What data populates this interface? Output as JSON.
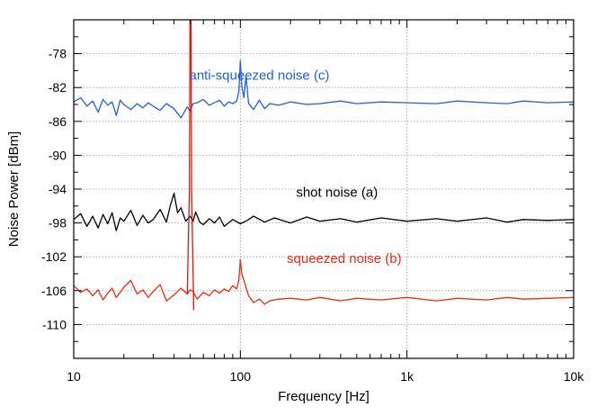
{
  "chart_data": {
    "type": "line",
    "title": "",
    "xlabel": "Frequency [Hz]",
    "ylabel": "Noise Power [dBm]",
    "xscale": "log",
    "xlim": [
      10,
      10000
    ],
    "ylim": [
      -114,
      -74
    ],
    "grid": true,
    "x_ticks": [
      {
        "value": 10,
        "label": "10"
      },
      {
        "value": 100,
        "label": "100"
      },
      {
        "value": 1000,
        "label": "1k"
      },
      {
        "value": 10000,
        "label": "10k"
      }
    ],
    "y_ticks": [
      {
        "value": -78,
        "label": "-78"
      },
      {
        "value": -82,
        "label": "-82"
      },
      {
        "value": -86,
        "label": "-86"
      },
      {
        "value": -90,
        "label": "-90"
      },
      {
        "value": -94,
        "label": "-94"
      },
      {
        "value": -98,
        "label": "-98"
      },
      {
        "value": -102,
        "label": "-102"
      },
      {
        "value": -106,
        "label": "-106"
      },
      {
        "value": -110,
        "label": "-110"
      }
    ],
    "series": [
      {
        "name": "anti-squeezed noise (c)",
        "color": "#1f5fe0",
        "x": [
          10,
          11,
          12,
          13,
          14,
          15,
          16,
          17,
          18,
          19,
          20,
          22,
          24,
          26,
          28,
          30,
          33,
          36,
          40,
          44,
          48,
          50,
          52,
          55,
          60,
          65,
          70,
          75,
          80,
          85,
          90,
          95,
          98,
          100,
          102,
          105,
          108,
          112,
          120,
          130,
          140,
          150,
          170,
          200,
          250,
          300,
          400,
          500,
          700,
          1000,
          1500,
          2000,
          3000,
          4000,
          5000,
          7000,
          10000
        ],
        "y": [
          -83.7,
          -83.2,
          -84.2,
          -83.6,
          -84.9,
          -83.4,
          -84.1,
          -83.7,
          -85.3,
          -83.5,
          -84.0,
          -84.6,
          -83.9,
          -84.4,
          -83.8,
          -84.2,
          -84.7,
          -83.9,
          -84.5,
          -85.6,
          -84.3,
          -84.8,
          -83.9,
          -83.8,
          -83.4,
          -84.1,
          -83.8,
          -83.5,
          -84.2,
          -83.7,
          -83.9,
          -83.6,
          -82.5,
          -78.8,
          -81.8,
          -83.2,
          -80.6,
          -83.9,
          -84.6,
          -83.5,
          -84.5,
          -83.9,
          -84.1,
          -83.7,
          -84.0,
          -83.9,
          -83.6,
          -83.9,
          -83.7,
          -83.8,
          -83.9,
          -83.6,
          -83.8,
          -83.9,
          -83.6,
          -83.8,
          -83.7
        ]
      },
      {
        "name": "shot noise (a)",
        "color": "#000000",
        "x": [
          10,
          11,
          12,
          13,
          14,
          15,
          16,
          17,
          18,
          19,
          20,
          22,
          24,
          26,
          28,
          30,
          33,
          36,
          38,
          40,
          42,
          44,
          47,
          50,
          52,
          54,
          57,
          60,
          65,
          70,
          75,
          80,
          90,
          100,
          110,
          120,
          140,
          160,
          200,
          250,
          300,
          400,
          500,
          700,
          1000,
          1500,
          2000,
          3000,
          4000,
          5000,
          7000,
          10000
        ],
        "y": [
          -97.6,
          -96.9,
          -98.4,
          -97.2,
          -98.6,
          -97.0,
          -98.1,
          -96.8,
          -98.9,
          -97.4,
          -97.8,
          -96.5,
          -98.3,
          -97.1,
          -98.0,
          -97.6,
          -96.4,
          -97.9,
          -95.9,
          -94.5,
          -96.8,
          -96.2,
          -97.8,
          -97.2,
          -97.8,
          -96.7,
          -97.9,
          -98.2,
          -97.5,
          -98.0,
          -97.3,
          -98.4,
          -97.6,
          -98.1,
          -97.7,
          -97.2,
          -97.9,
          -97.4,
          -98.0,
          -97.3,
          -97.8,
          -97.5,
          -97.9,
          -97.4,
          -97.8,
          -97.5,
          -97.8,
          -97.4,
          -97.9,
          -97.6,
          -97.7,
          -97.6
        ]
      },
      {
        "name": "squeezed noise (b)",
        "color": "#ee2a12",
        "x": [
          10,
          11,
          12,
          13,
          14,
          15,
          16,
          17,
          18,
          19,
          20,
          22,
          24,
          26,
          28,
          30,
          33,
          36,
          40,
          44,
          48,
          50,
          52,
          55,
          60,
          65,
          70,
          75,
          80,
          85,
          90,
          95,
          98,
          100,
          102,
          105,
          108,
          112,
          120,
          130,
          140,
          150,
          170,
          200,
          250,
          300,
          400,
          500,
          700,
          1000,
          1500,
          2000,
          3000,
          4000,
          5000,
          7000,
          10000
        ],
        "y": [
          -105.4,
          -106.2,
          -105.8,
          -106.6,
          -105.9,
          -107.1,
          -106.3,
          -105.7,
          -106.8,
          -106.2,
          -105.6,
          -104.8,
          -106.4,
          -105.9,
          -106.8,
          -106.1,
          -105.3,
          -107.2,
          -106.5,
          -105.7,
          -106.4,
          -105.9,
          -106.1,
          -107.0,
          -106.2,
          -106.6,
          -105.9,
          -106.3,
          -105.8,
          -106.1,
          -105.4,
          -105.8,
          -104.8,
          -102.3,
          -104.0,
          -104.8,
          -105.6,
          -106.6,
          -107.4,
          -107.0,
          -107.6,
          -107.2,
          -107.0,
          -106.9,
          -107.1,
          -106.8,
          -107.2,
          -106.9,
          -107.1,
          -106.8,
          -107.2,
          -106.9,
          -107.1,
          -106.8,
          -107.0,
          -106.9,
          -106.8
        ]
      },
      {
        "name": "50 Hz line",
        "color": "#e0140a",
        "x": [
          48,
          49.5,
          50,
          50.5,
          51,
          52.5
        ],
        "y": [
          -106.4,
          -94,
          -70,
          -70,
          -94,
          -108.3
        ]
      }
    ],
    "annotations": [
      {
        "text": "anti-squeezed noise (c)",
        "color": "#1f5fe0",
        "x": 130,
        "y": -81.1
      },
      {
        "text": "shot noise (a)",
        "color": "#000000",
        "x": 380,
        "y": -94.9
      },
      {
        "text": "squeezed noise (b)",
        "color": "#ee2a12",
        "x": 420,
        "y": -102.7
      }
    ]
  }
}
